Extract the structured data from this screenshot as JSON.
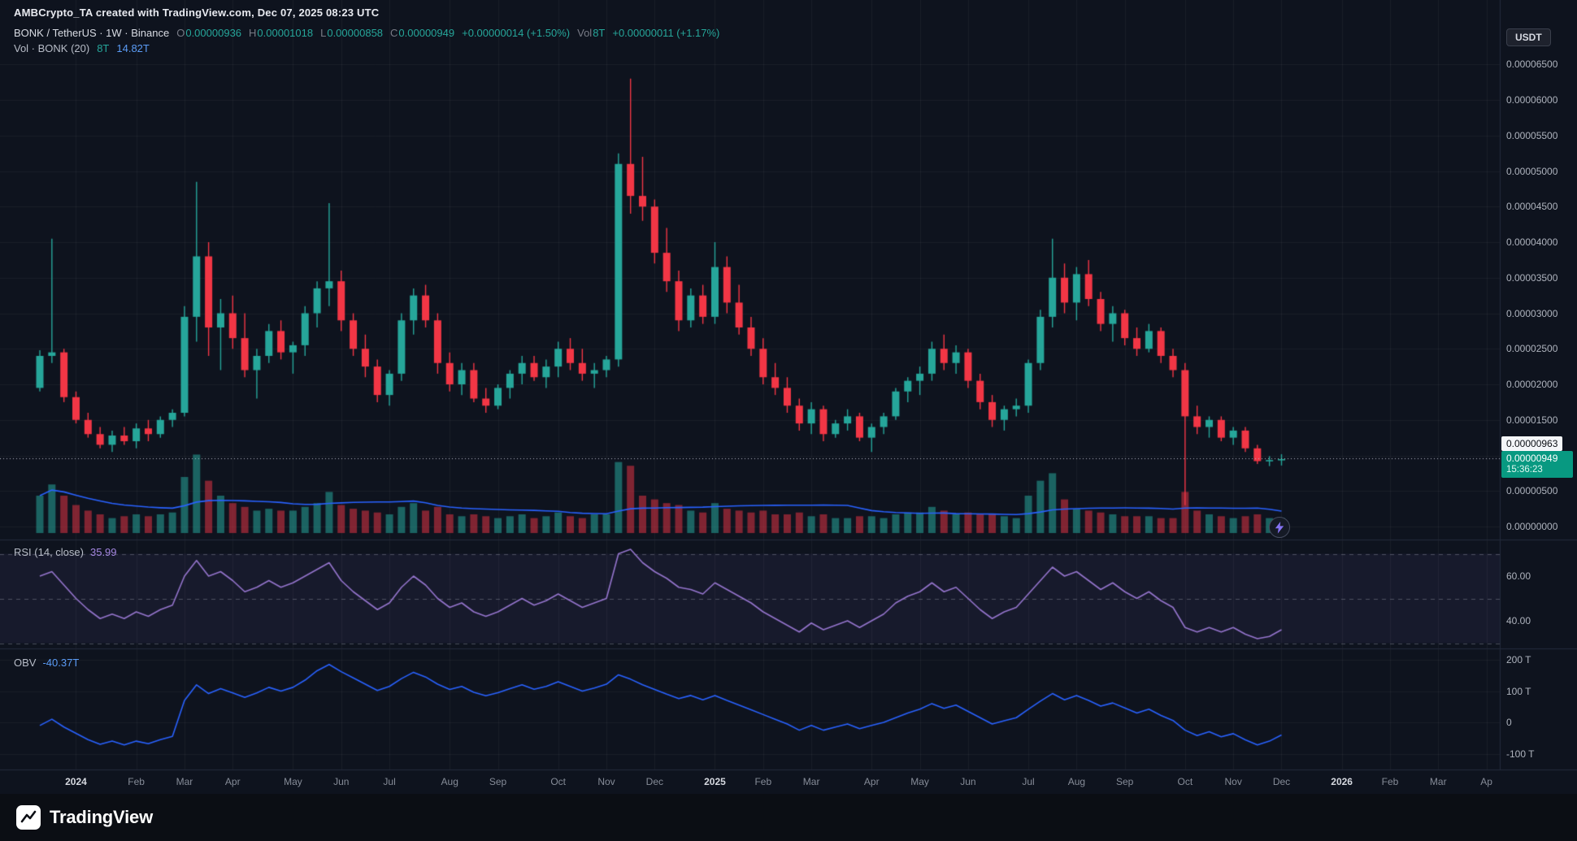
{
  "attribution": "AMBCrypto_TA created with TradingView.com, Dec 07, 2025 08:23 UTC",
  "header": {
    "symbol_title": "BONK / TetherUS · 1W · Binance",
    "ohlc": [
      {
        "label": "O",
        "value": "0.00000936"
      },
      {
        "label": "H",
        "value": "0.00001018"
      },
      {
        "label": "L",
        "value": "0.00000858"
      },
      {
        "label": "C",
        "value": "0.00000949"
      }
    ],
    "change_text": "+0.00000014 (+1.50%)",
    "volume": {
      "label": "Vol",
      "value": "8T",
      "change_text": "+0.00000011 (+1.17%)"
    }
  },
  "indicator_legends": {
    "volume_ma": {
      "label": "Vol · BONK (20)",
      "value": "8T",
      "ma_value": "14.82T"
    },
    "rsi": {
      "label": "RSI (14, close)",
      "value": "35.99"
    },
    "obv": {
      "label": "OBV",
      "value": "-40.37T"
    }
  },
  "price_scale": {
    "currency": "USDT",
    "price_line_label": "0.00000963",
    "last_price_badge": {
      "price": "0.00000949",
      "countdown": "15:36:23"
    },
    "ticks": [
      {
        "text": "0.00006500",
        "p": 6500
      },
      {
        "text": "0.00006000",
        "p": 6000
      },
      {
        "text": "0.00005500",
        "p": 5500
      },
      {
        "text": "0.00005000",
        "p": 5000
      },
      {
        "text": "0.00004500",
        "p": 4500
      },
      {
        "text": "0.00004000",
        "p": 4000
      },
      {
        "text": "0.00003500",
        "p": 3500
      },
      {
        "text": "0.00003000",
        "p": 3000
      },
      {
        "text": "0.00002500",
        "p": 2500
      },
      {
        "text": "0.00002000",
        "p": 2000
      },
      {
        "text": "0.00001500",
        "p": 1500
      },
      {
        "text": "0.00000500",
        "p": 500
      },
      {
        "text": "0.00000000",
        "p": 0
      }
    ]
  },
  "rsi_scale": [
    {
      "text": "60.00",
      "v": 60
    },
    {
      "text": "40.00",
      "v": 40
    }
  ],
  "obv_scale": [
    {
      "text": "200 T",
      "v": 200
    },
    {
      "text": "100 T",
      "v": 100
    },
    {
      "text": "0",
      "v": 0
    },
    {
      "text": "-100 T",
      "v": -100
    }
  ],
  "time_axis": [
    {
      "label": "2024",
      "i": 3,
      "major": true
    },
    {
      "label": "Feb",
      "i": 8
    },
    {
      "label": "Mar",
      "i": 12
    },
    {
      "label": "Apr",
      "i": 16
    },
    {
      "label": "May",
      "i": 21
    },
    {
      "label": "Jun",
      "i": 25
    },
    {
      "label": "Jul",
      "i": 29
    },
    {
      "label": "Aug",
      "i": 34
    },
    {
      "label": "Sep",
      "i": 38
    },
    {
      "label": "Oct",
      "i": 43
    },
    {
      "label": "Nov",
      "i": 47
    },
    {
      "label": "Dec",
      "i": 51
    },
    {
      "label": "2025",
      "i": 56,
      "major": true
    },
    {
      "label": "Feb",
      "i": 60
    },
    {
      "label": "Mar",
      "i": 64
    },
    {
      "label": "Apr",
      "i": 69
    },
    {
      "label": "May",
      "i": 73
    },
    {
      "label": "Jun",
      "i": 77
    },
    {
      "label": "Jul",
      "i": 82
    },
    {
      "label": "Aug",
      "i": 86
    },
    {
      "label": "Sep",
      "i": 90
    },
    {
      "label": "Oct",
      "i": 95
    },
    {
      "label": "Nov",
      "i": 99
    },
    {
      "label": "Dec",
      "i": 103
    },
    {
      "label": "2026",
      "i": 108,
      "major": true
    },
    {
      "label": "Feb",
      "i": 112
    },
    {
      "label": "Mar",
      "i": 116
    },
    {
      "label": "Ap",
      "i": 120
    }
  ],
  "footer": {
    "brand": "TradingView"
  },
  "chart_data": {
    "type": "candlestick",
    "symbol": "BONK/USDT",
    "interval": "1W",
    "exchange": "Binance",
    "title": "BONK / TetherUS weekly with volume, RSI(14) and OBV",
    "price_scale_factor": 1e-08,
    "candle_format": [
      "open",
      "high",
      "low",
      "close",
      "volume_T"
    ],
    "ylim": [
      0,
      6.8e-06
    ],
    "last_price": 9.49e-06,
    "price_line_value": 9.63e-06,
    "grid_prices": [
      6500,
      6000,
      5500,
      5000,
      4500,
      4000,
      3500,
      3000,
      2500,
      2000,
      1500,
      1000,
      500,
      0
    ],
    "candles": [
      [
        1950,
        2480,
        1900,
        2400,
        20
      ],
      [
        2400,
        4050,
        2300,
        2450,
        26
      ],
      [
        2450,
        2500,
        1750,
        1820,
        20
      ],
      [
        1820,
        1900,
        1450,
        1500,
        15
      ],
      [
        1500,
        1600,
        1250,
        1300,
        12
      ],
      [
        1300,
        1400,
        1100,
        1150,
        10
      ],
      [
        1150,
        1350,
        1050,
        1280,
        8
      ],
      [
        1280,
        1400,
        1150,
        1200,
        9
      ],
      [
        1200,
        1450,
        1100,
        1380,
        10
      ],
      [
        1380,
        1500,
        1200,
        1300,
        9
      ],
      [
        1300,
        1550,
        1250,
        1500,
        10
      ],
      [
        1500,
        1650,
        1400,
        1600,
        11
      ],
      [
        1600,
        3100,
        1550,
        2950,
        30
      ],
      [
        2950,
        4850,
        2600,
        3800,
        42
      ],
      [
        3800,
        4000,
        2400,
        2800,
        28
      ],
      [
        2800,
        3200,
        2200,
        3000,
        20
      ],
      [
        3000,
        3250,
        2500,
        2650,
        16
      ],
      [
        2650,
        3000,
        2100,
        2200,
        14
      ],
      [
        2200,
        2500,
        1800,
        2400,
        12
      ],
      [
        2400,
        2850,
        2300,
        2750,
        13
      ],
      [
        2750,
        2900,
        2350,
        2450,
        12
      ],
      [
        2450,
        2600,
        2150,
        2550,
        12
      ],
      [
        2550,
        3100,
        2400,
        3000,
        14
      ],
      [
        3000,
        3450,
        2800,
        3350,
        16
      ],
      [
        3350,
        4550,
        3100,
        3450,
        22
      ],
      [
        3450,
        3600,
        2750,
        2900,
        15
      ],
      [
        2900,
        3000,
        2400,
        2500,
        13
      ],
      [
        2500,
        2700,
        2100,
        2250,
        12
      ],
      [
        2250,
        2350,
        1750,
        1850,
        11
      ],
      [
        1850,
        2200,
        1700,
        2150,
        10
      ],
      [
        2150,
        3000,
        2050,
        2900,
        14
      ],
      [
        2900,
        3350,
        2700,
        3250,
        16
      ],
      [
        3250,
        3400,
        2800,
        2900,
        12
      ],
      [
        2900,
        3000,
        2150,
        2300,
        14
      ],
      [
        2300,
        2450,
        1900,
        2000,
        10
      ],
      [
        2000,
        2300,
        1850,
        2200,
        9
      ],
      [
        2200,
        2300,
        1750,
        1800,
        10
      ],
      [
        1800,
        1950,
        1600,
        1700,
        9
      ],
      [
        1700,
        2000,
        1650,
        1950,
        8
      ],
      [
        1950,
        2200,
        1800,
        2150,
        9
      ],
      [
        2150,
        2400,
        2000,
        2300,
        10
      ],
      [
        2300,
        2400,
        2050,
        2100,
        8
      ],
      [
        2100,
        2350,
        1950,
        2250,
        9
      ],
      [
        2250,
        2600,
        2100,
        2500,
        11
      ],
      [
        2500,
        2650,
        2200,
        2300,
        9
      ],
      [
        2300,
        2500,
        2050,
        2150,
        8
      ],
      [
        2150,
        2300,
        1950,
        2200,
        10
      ],
      [
        2200,
        2400,
        2100,
        2350,
        10
      ],
      [
        2350,
        5250,
        2250,
        5100,
        38
      ],
      [
        5100,
        6300,
        4400,
        4650,
        36
      ],
      [
        4650,
        5200,
        4300,
        4500,
        20
      ],
      [
        4500,
        4600,
        3700,
        3850,
        18
      ],
      [
        3850,
        4200,
        3300,
        3450,
        16
      ],
      [
        3450,
        3600,
        2750,
        2900,
        15
      ],
      [
        2900,
        3350,
        2800,
        3250,
        12
      ],
      [
        3250,
        3400,
        2850,
        2950,
        11
      ],
      [
        2950,
        4000,
        2850,
        3650,
        16
      ],
      [
        3650,
        3800,
        3000,
        3150,
        13
      ],
      [
        3150,
        3400,
        2700,
        2800,
        12
      ],
      [
        2800,
        2950,
        2400,
        2500,
        11
      ],
      [
        2500,
        2650,
        2000,
        2100,
        12
      ],
      [
        2100,
        2300,
        1850,
        1950,
        10
      ],
      [
        1950,
        2100,
        1600,
        1700,
        10
      ],
      [
        1700,
        1800,
        1350,
        1450,
        11
      ],
      [
        1450,
        1750,
        1300,
        1650,
        9
      ],
      [
        1650,
        1700,
        1200,
        1300,
        10
      ],
      [
        1300,
        1500,
        1250,
        1450,
        8
      ],
      [
        1450,
        1650,
        1350,
        1550,
        8
      ],
      [
        1550,
        1600,
        1200,
        1250,
        9
      ],
      [
        1250,
        1450,
        1050,
        1400,
        9
      ],
      [
        1400,
        1600,
        1300,
        1550,
        8
      ],
      [
        1550,
        1950,
        1500,
        1900,
        10
      ],
      [
        1900,
        2100,
        1750,
        2050,
        11
      ],
      [
        2050,
        2250,
        1850,
        2150,
        11
      ],
      [
        2150,
        2600,
        2050,
        2500,
        14
      ],
      [
        2500,
        2700,
        2200,
        2300,
        12
      ],
      [
        2300,
        2550,
        2150,
        2450,
        10
      ],
      [
        2450,
        2500,
        1950,
        2050,
        11
      ],
      [
        2050,
        2150,
        1650,
        1750,
        10
      ],
      [
        1750,
        1850,
        1400,
        1500,
        10
      ],
      [
        1500,
        1700,
        1350,
        1650,
        9
      ],
      [
        1650,
        1800,
        1550,
        1700,
        8
      ],
      [
        1700,
        2350,
        1600,
        2300,
        20
      ],
      [
        2300,
        3050,
        2200,
        2950,
        28
      ],
      [
        2950,
        4050,
        2800,
        3500,
        32
      ],
      [
        3500,
        3700,
        3000,
        3150,
        18
      ],
      [
        3150,
        3650,
        2900,
        3550,
        13
      ],
      [
        3550,
        3750,
        3100,
        3200,
        12
      ],
      [
        3200,
        3300,
        2750,
        2850,
        11
      ],
      [
        2850,
        3100,
        2600,
        3000,
        10
      ],
      [
        3000,
        3050,
        2550,
        2650,
        9
      ],
      [
        2650,
        2800,
        2400,
        2500,
        9
      ],
      [
        2500,
        2850,
        2450,
        2750,
        9
      ],
      [
        2750,
        2800,
        2300,
        2400,
        8
      ],
      [
        2400,
        2500,
        2100,
        2200,
        8
      ],
      [
        2200,
        2300,
        300,
        1550,
        22
      ],
      [
        1550,
        1700,
        1300,
        1400,
        12
      ],
      [
        1400,
        1550,
        1250,
        1500,
        10
      ],
      [
        1500,
        1550,
        1200,
        1250,
        9
      ],
      [
        1250,
        1400,
        1150,
        1350,
        8
      ],
      [
        1350,
        1400,
        1050,
        1100,
        9
      ],
      [
        1100,
        1150,
        880,
        920,
        10
      ],
      [
        920,
        990,
        850,
        935,
        8
      ],
      [
        936,
        1018,
        858,
        949,
        8
      ]
    ],
    "indicators": {
      "vol_ma": {
        "period": 20,
        "current_T": 14.82
      },
      "rsi": {
        "period": 14,
        "source": "close",
        "current": 35.99,
        "bands": [
          70,
          50,
          30
        ],
        "values": [
          60,
          62,
          56,
          50,
          45,
          41,
          43,
          41,
          44,
          42,
          45,
          47,
          60,
          67,
          60,
          62,
          58,
          53,
          55,
          58,
          55,
          57,
          60,
          63,
          66,
          58,
          53,
          49,
          45,
          48,
          55,
          60,
          56,
          50,
          46,
          48,
          44,
          42,
          44,
          47,
          50,
          47,
          49,
          52,
          49,
          46,
          48,
          50,
          70,
          72,
          66,
          62,
          59,
          55,
          54,
          52,
          57,
          54,
          51,
          48,
          44,
          41,
          38,
          35,
          39,
          36,
          38,
          40,
          37,
          40,
          43,
          48,
          51,
          53,
          57,
          53,
          55,
          50,
          45,
          41,
          44,
          46,
          52,
          58,
          64,
          60,
          62,
          58,
          54,
          57,
          53,
          50,
          53,
          49,
          46,
          37,
          35,
          37,
          35,
          37,
          34,
          32,
          33,
          35.99
        ]
      },
      "obv": {
        "current_T": -40.37,
        "values_T": [
          -10,
          10,
          -15,
          -35,
          -55,
          -70,
          -60,
          -72,
          -60,
          -68,
          -55,
          -45,
          70,
          120,
          92,
          108,
          94,
          80,
          94,
          112,
          100,
          112,
          135,
          165,
          185,
          162,
          142,
          122,
          102,
          115,
          140,
          160,
          145,
          122,
          105,
          115,
          96,
          85,
          95,
          108,
          120,
          106,
          115,
          130,
          115,
          100,
          110,
          122,
          152,
          138,
          120,
          105,
          90,
          76,
          86,
          72,
          86,
          70,
          55,
          40,
          25,
          10,
          -5,
          -25,
          -10,
          -25,
          -15,
          -5,
          -20,
          -10,
          0,
          15,
          30,
          42,
          60,
          45,
          55,
          35,
          15,
          -5,
          5,
          15,
          42,
          68,
          92,
          72,
          86,
          70,
          52,
          62,
          46,
          30,
          42,
          22,
          6,
          -25,
          -42,
          -30,
          -46,
          -36,
          -56,
          -72,
          -60,
          -40.37
        ]
      }
    },
    "colors": {
      "background": "#0e131e",
      "up": "#26a69a",
      "down": "#f23645",
      "vol_up": "rgba(38,166,154,0.55)",
      "vol_down": "rgba(242,54,69,0.5)",
      "vol_ma": "#2962ff",
      "rsi_line": "#9575cd",
      "rsi_band_fill": "rgba(142,112,220,0.08)",
      "obv_line": "#2962ff",
      "grid": "rgba(240,243,250,0.05)",
      "separator": "#242b3c",
      "price_line": "#b9bec9",
      "last_badge": "#089981"
    }
  }
}
